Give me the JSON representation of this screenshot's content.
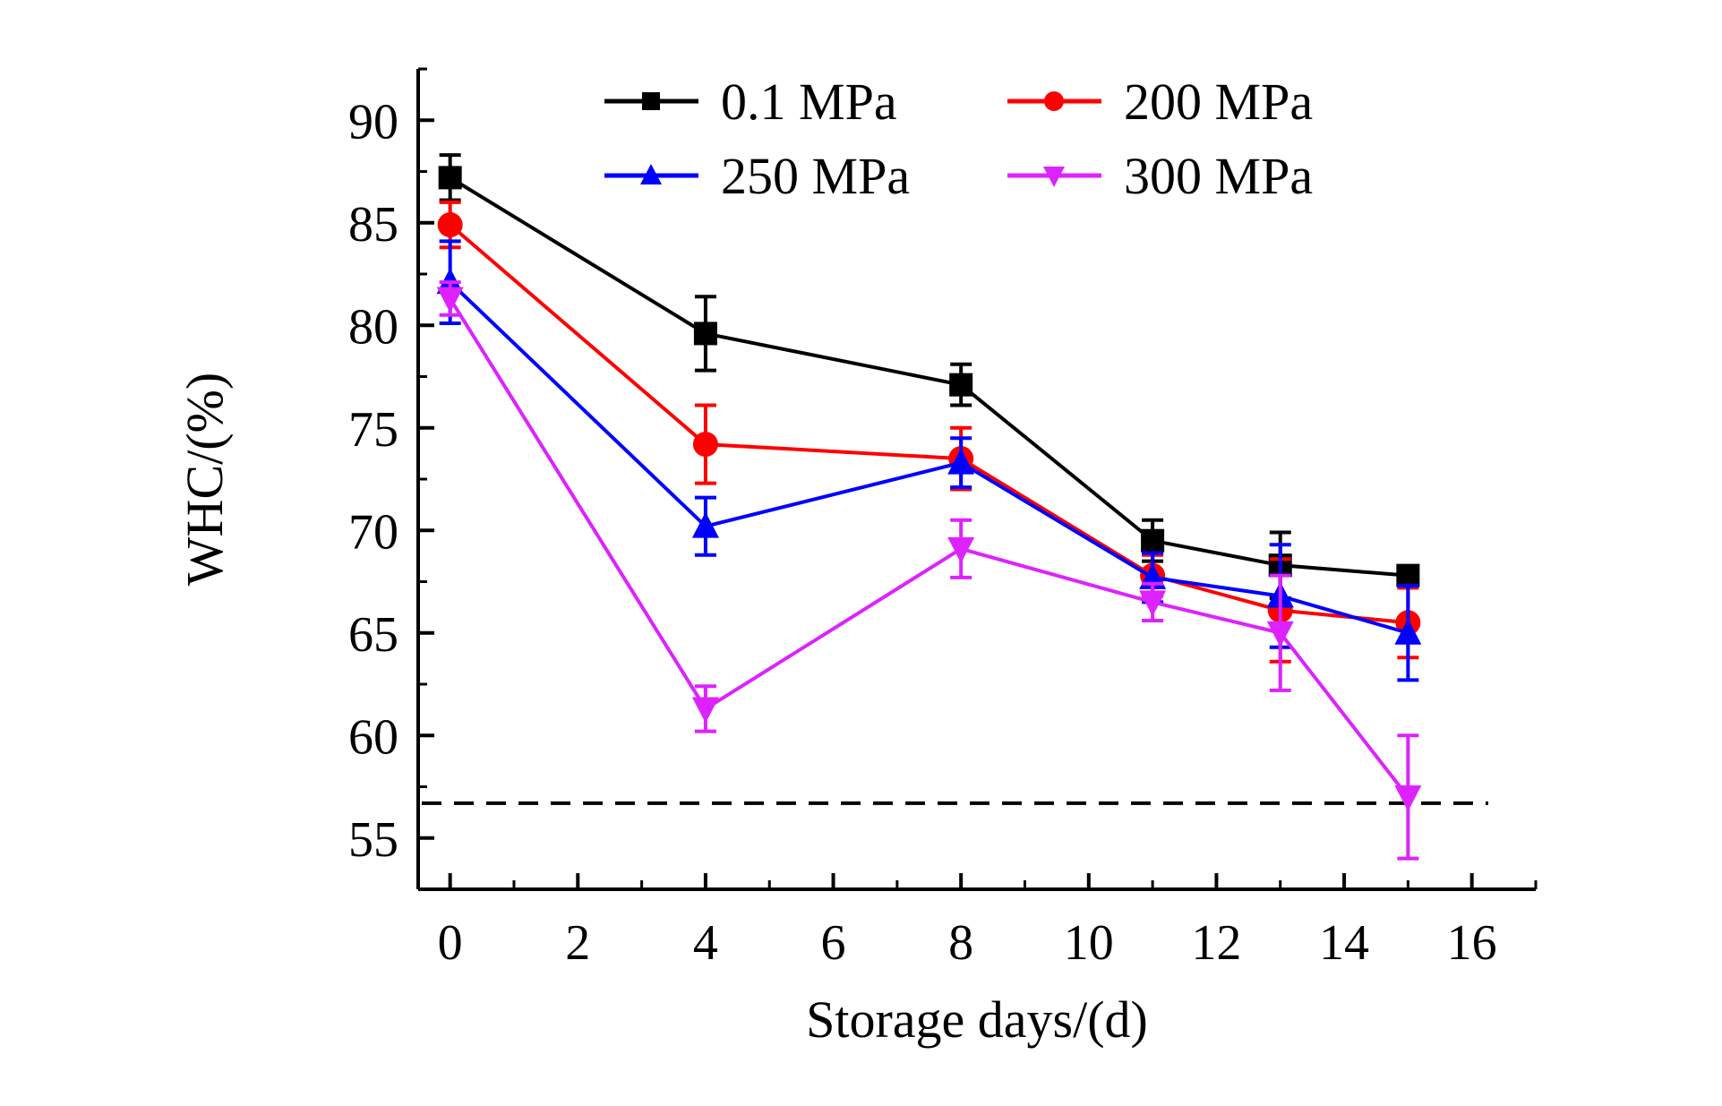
{
  "chart_data": {
    "type": "line",
    "title": "",
    "xlabel": "Storage days/(d)",
    "ylabel": "WHC/(%)",
    "xlim": [
      -0.5,
      17
    ],
    "ylim": [
      52.5,
      92.5
    ],
    "x_ticks": [
      0,
      2,
      4,
      6,
      8,
      10,
      12,
      14,
      16
    ],
    "x_tick_labels": [
      "0",
      "2",
      "4",
      "6",
      "8",
      "10",
      "12",
      "14",
      "16"
    ],
    "y_ticks": [
      55,
      60,
      65,
      70,
      75,
      80,
      85,
      90
    ],
    "y_tick_labels": [
      "55",
      "60",
      "65",
      "70",
      "75",
      "80",
      "85",
      "90"
    ],
    "grid": false,
    "legend_position": "top",
    "x": [
      0,
      4,
      8,
      11,
      13,
      15
    ],
    "series": [
      {
        "name": "0.1 MPa",
        "color": "#000000",
        "marker": "square",
        "values": [
          87.2,
          79.6,
          77.1,
          69.5,
          68.3,
          67.8
        ],
        "errors": [
          1.1,
          1.8,
          1.0,
          1.0,
          1.6,
          0.3
        ]
      },
      {
        "name": "200 MPa",
        "color": "#ff0000",
        "marker": "circle",
        "values": [
          84.9,
          74.2,
          73.5,
          67.8,
          66.1,
          65.5
        ],
        "errors": [
          1.1,
          1.9,
          1.5,
          1.0,
          2.5,
          1.7
        ]
      },
      {
        "name": "250 MPa",
        "color": "#0000ff",
        "marker": "triangle-up",
        "values": [
          82.1,
          70.2,
          73.3,
          67.7,
          66.8,
          65.0
        ],
        "errors": [
          2.0,
          1.4,
          1.2,
          1.2,
          2.5,
          2.3
        ]
      },
      {
        "name": "300 MPa",
        "color": "#dd22ff",
        "marker": "triangle-down",
        "values": [
          81.3,
          61.3,
          69.1,
          66.5,
          65.0,
          57.0
        ],
        "errors": [
          0.8,
          1.1,
          1.4,
          0.9,
          2.8,
          3.0
        ]
      }
    ],
    "reference_line": {
      "style": "dashed",
      "color": "#000000",
      "y": 56.7
    }
  }
}
